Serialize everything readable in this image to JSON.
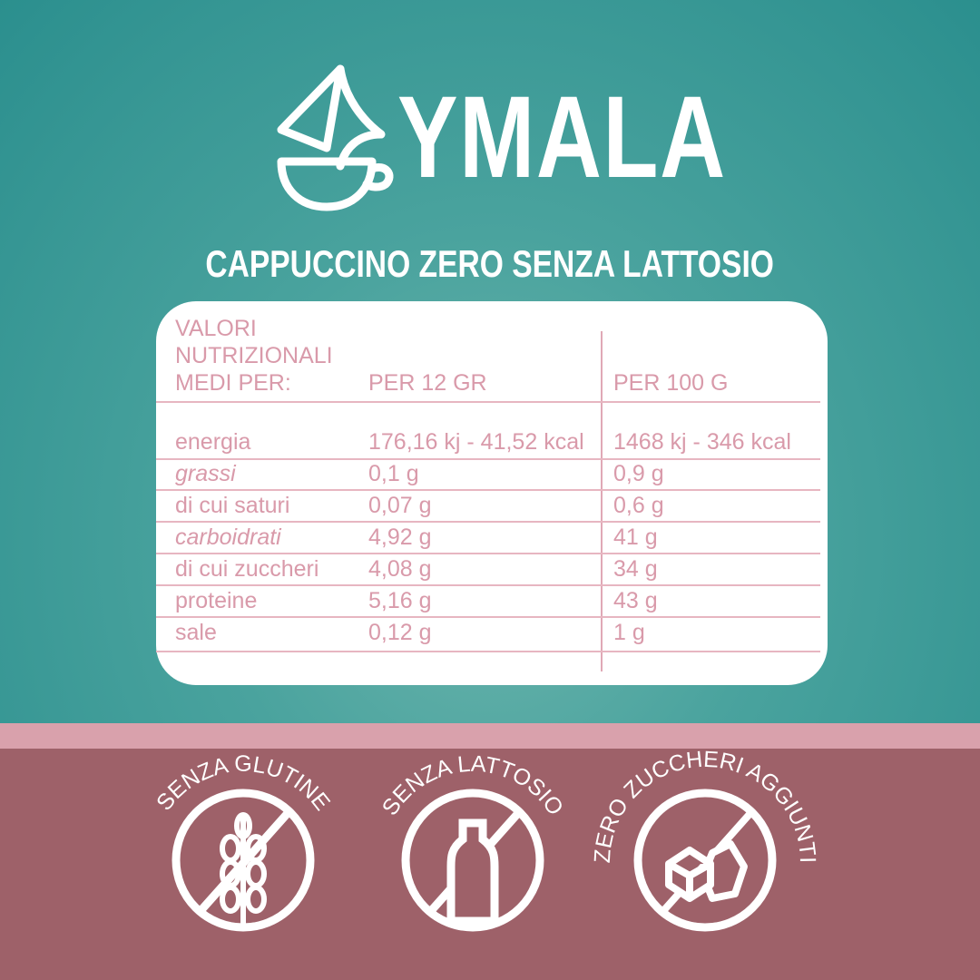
{
  "brand": {
    "name": "YMALA",
    "logo_icon": "drop-cup-icon"
  },
  "product": {
    "title": "CAPPUCCINO ZERO SENZA LATTOSIO"
  },
  "table": {
    "header": {
      "label_lines": [
        "VALORI",
        "NUTRIZIONALI",
        "MEDI PER:"
      ],
      "col1": "PER 12 GR",
      "col2": "PER 100 G"
    },
    "rows": [
      {
        "name": "energia",
        "per12": "176,16 kj - 41,52 kcal",
        "per100": "1468 kj - 346 kcal"
      },
      {
        "name": "grassi",
        "per12": "0,1 g",
        "per100": "0,9 g"
      },
      {
        "name": "di cui saturi",
        "per12": "0,07 g",
        "per100": "0,6 g"
      },
      {
        "name": "carboidrati",
        "per12": "4,92 g",
        "per100": "41 g"
      },
      {
        "name": "di cui zuccheri",
        "per12": "4,08 g",
        "per100": "34 g"
      },
      {
        "name": "proteine",
        "per12": "5,16 g",
        "per100": "43 g"
      },
      {
        "name": "sale",
        "per12": "0,12 g",
        "per100": "1 g"
      }
    ]
  },
  "badges": [
    {
      "label": "SENZA GLUTINE",
      "icon": "wheat-crossed-icon"
    },
    {
      "label": "SENZA  LATTOSIO",
      "icon": "bottle-crossed-icon"
    },
    {
      "label": "ZERO ZUCCHERI AGGIUNTI",
      "icon": "sugar-cubes-crossed-icon"
    }
  ],
  "colors": {
    "teal": "#3d9c98",
    "pink_text": "#d99aaa",
    "stripe": "#d9a1ac",
    "mauve": "#9e6169"
  }
}
